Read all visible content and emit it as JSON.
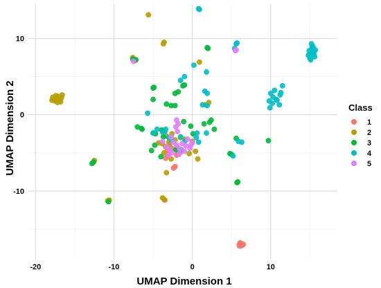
{
  "chart_data": {
    "type": "scatter",
    "title": "",
    "xlabel": "UMAP Dimension 1",
    "ylabel": "UMAP Dimension 2",
    "xlim": [
      -21,
      18.5
    ],
    "ylim": [
      -19,
      14.5
    ],
    "x_ticks": [
      -20,
      -10,
      0,
      10
    ],
    "y_ticks": [
      -10,
      0,
      10
    ],
    "grid": true,
    "legend": {
      "title": "Class",
      "placement": "right"
    },
    "series": [
      {
        "name": "1",
        "color": "#F8766D",
        "points": [
          [
            6.2,
            -16.9
          ],
          [
            6.0,
            -17.0
          ],
          [
            6.4,
            -17.1
          ],
          [
            6.1,
            -16.8
          ],
          [
            6.3,
            -16.9
          ],
          [
            6.0,
            -17.2
          ],
          [
            6.5,
            -17.0
          ],
          [
            6.2,
            -17.2
          ],
          [
            -3.5,
            -11.2
          ],
          [
            -3.0,
            -5.2
          ],
          [
            -3.4,
            -5.7
          ],
          [
            -2.4,
            -7.0
          ],
          [
            -2.0,
            -5.3
          ],
          [
            -2.5,
            -4.5
          ],
          [
            -1.8,
            -5.1
          ],
          [
            -3.2,
            -4.6
          ],
          [
            -2.2,
            -6.8
          ],
          [
            -1.5,
            -4.9
          ],
          [
            -2.9,
            -4.0
          ],
          [
            -3.1,
            -5.4
          ]
        ]
      },
      {
        "name": "2",
        "color": "#B79F00",
        "points": [
          [
            -17.3,
            2.1
          ],
          [
            -17.8,
            2.3
          ],
          [
            -16.9,
            2.0
          ],
          [
            -17.5,
            1.8
          ],
          [
            -17.1,
            2.4
          ],
          [
            -16.7,
            2.2
          ],
          [
            -17.9,
            1.9
          ],
          [
            -17.4,
            2.5
          ],
          [
            -16.8,
            1.7
          ],
          [
            -17.6,
            2.0
          ],
          [
            -17.2,
            1.6
          ],
          [
            -16.6,
            2.6
          ],
          [
            -5.6,
            13.1
          ],
          [
            -3.6,
            9.5
          ],
          [
            -3.7,
            9.3
          ],
          [
            -7.6,
            7.5
          ],
          [
            -7.3,
            7.1
          ],
          [
            -12.5,
            -6.0
          ],
          [
            -10.8,
            -11.3
          ],
          [
            -10.6,
            -11.2
          ],
          [
            -3.8,
            -10.9
          ],
          [
            -3.6,
            -11.1
          ],
          [
            -3.3,
            -7.6
          ],
          [
            -3.8,
            -3.8
          ],
          [
            -3.4,
            -4.2
          ],
          [
            -3.0,
            -3.6
          ],
          [
            -3.6,
            -5.0
          ],
          [
            -4.3,
            -3.7
          ],
          [
            -2.8,
            -4.3
          ],
          [
            -2.2,
            -3.3
          ],
          [
            -1.9,
            -4.3
          ],
          [
            0.0,
            -3.5
          ],
          [
            0.4,
            -4.8
          ],
          [
            0.7,
            -5.8
          ],
          [
            -0.4,
            -5.1
          ],
          [
            -2.7,
            -5.8
          ],
          [
            -3.3,
            -2.8
          ],
          [
            -2.6,
            -2.5
          ],
          [
            -1.0,
            -3.2
          ],
          [
            0.9,
            6.9
          ],
          [
            1.7,
            1.3
          ],
          [
            2.1,
            1.6
          ],
          [
            -1.5,
            -3.0
          ]
        ]
      },
      {
        "name": "3",
        "color": "#00BA38",
        "points": [
          [
            -12.8,
            -6.4
          ],
          [
            -12.6,
            -6.2
          ],
          [
            -10.7,
            -11.4
          ],
          [
            -7.6,
            7.3
          ],
          [
            -7.2,
            7.2
          ],
          [
            -5.0,
            3.5
          ],
          [
            -4.9,
            3.6
          ],
          [
            -5.0,
            2.0
          ],
          [
            -6.5,
            -1.8
          ],
          [
            -6.4,
            -1.9
          ],
          [
            -7.0,
            -1.6
          ],
          [
            -4.7,
            -2.5
          ],
          [
            -5.0,
            -2.4
          ],
          [
            -5.2,
            -4.7
          ],
          [
            -4.8,
            -4.0
          ],
          [
            -3.9,
            -2.0
          ],
          [
            -3.7,
            -2.9
          ],
          [
            -3.3,
            1.4
          ],
          [
            -2.7,
            1.2
          ],
          [
            -2.2,
            1.2
          ],
          [
            -2.2,
            2.8
          ],
          [
            -1.8,
            3.0
          ],
          [
            -1.2,
            3.8
          ],
          [
            -1.0,
            3.9
          ],
          [
            1.9,
            8.8
          ],
          [
            2.0,
            8.7
          ],
          [
            2.2,
            -1.0
          ],
          [
            2.4,
            -0.7
          ],
          [
            2.8,
            -1.9
          ],
          [
            1.5,
            -1.2
          ],
          [
            -1.1,
            -0.9
          ],
          [
            -0.2,
            -1.5
          ],
          [
            0.1,
            -2.5
          ],
          [
            -2.1,
            -4.6
          ],
          [
            -4.0,
            -5.5
          ],
          [
            4.8,
            -5.1
          ],
          [
            5.0,
            -5.2
          ],
          [
            5.6,
            -3.1
          ],
          [
            5.8,
            -8.8
          ],
          [
            5.7,
            -8.9
          ],
          [
            9.7,
            -3.4
          ]
        ]
      },
      {
        "name": "4",
        "color": "#00BFC4",
        "points": [
          [
            0.9,
            13.8
          ],
          [
            0.8,
            13.9
          ],
          [
            5.6,
            9.3
          ],
          [
            5.7,
            9.4
          ],
          [
            5.4,
            8.7
          ],
          [
            15.2,
            8.6
          ],
          [
            15.0,
            7.9
          ],
          [
            15.5,
            8.2
          ],
          [
            15.3,
            9.0
          ],
          [
            14.9,
            8.4
          ],
          [
            15.6,
            7.6
          ],
          [
            15.1,
            7.2
          ],
          [
            15.4,
            8.9
          ],
          [
            14.8,
            7.8
          ],
          [
            15.7,
            8.5
          ],
          [
            15.2,
            9.3
          ],
          [
            15.0,
            7.4
          ],
          [
            15.5,
            7.9
          ],
          [
            15.3,
            8.1
          ],
          [
            9.8,
            1.8
          ],
          [
            10.3,
            2.3
          ],
          [
            10.8,
            1.9
          ],
          [
            11.2,
            2.6
          ],
          [
            10.0,
            2.8
          ],
          [
            11.5,
            3.8
          ],
          [
            9.9,
            0.9
          ],
          [
            11.1,
            1.3
          ],
          [
            10.5,
            3.2
          ],
          [
            10.2,
            1.5
          ],
          [
            11.3,
            2.9
          ],
          [
            10.7,
            2.0
          ],
          [
            0.2,
            6.5
          ],
          [
            1.8,
            5.6
          ],
          [
            1.6,
            3.1
          ],
          [
            1.9,
            2.8
          ],
          [
            -1.5,
            4.5
          ],
          [
            -1.0,
            5.0
          ],
          [
            1.3,
            1.3
          ],
          [
            1.9,
            1.2
          ],
          [
            -5.7,
            0.2
          ],
          [
            -5.0,
            -2.4
          ],
          [
            -4.5,
            -1.9
          ],
          [
            -3.8,
            -2.3
          ],
          [
            -3.5,
            -2.2
          ],
          [
            -3.0,
            -3.0
          ],
          [
            -2.6,
            -3.4
          ],
          [
            -3.4,
            -1.9
          ],
          [
            -1.5,
            -2.9
          ],
          [
            -0.9,
            -3.4
          ],
          [
            -1.4,
            -4.6
          ],
          [
            0.5,
            -3.0
          ],
          [
            0.6,
            -2.4
          ],
          [
            0.8,
            -3.6
          ],
          [
            1.8,
            -2.4
          ],
          [
            5.9,
            -3.5
          ],
          [
            6.3,
            -3.6
          ],
          [
            5.2,
            -5.4
          ]
        ]
      },
      {
        "name": "5",
        "color": "#E07EFF",
        "points": [
          [
            -7.5,
            7.0
          ],
          [
            -2.0,
            -0.7
          ],
          [
            -1.8,
            -1.2
          ],
          [
            -2.1,
            -1.6
          ],
          [
            -1.9,
            -2.2
          ],
          [
            -1.3,
            -3.8
          ],
          [
            -0.8,
            -4.1
          ],
          [
            -1.6,
            -4.5
          ],
          [
            -2.0,
            -4.0
          ],
          [
            -2.6,
            -5.0
          ],
          [
            -3.0,
            -5.3
          ],
          [
            -0.2,
            -4.0
          ],
          [
            0.0,
            -3.7
          ],
          [
            -0.6,
            -3.2
          ],
          [
            -2.4,
            -3.6
          ],
          [
            -3.3,
            -4.2
          ],
          [
            -2.9,
            -4.5
          ],
          [
            -1.0,
            -4.8
          ],
          [
            -1.7,
            -5.2
          ],
          [
            -0.3,
            -4.4
          ],
          [
            -3.8,
            -3.5
          ],
          [
            -2.7,
            -2.9
          ],
          [
            5.6,
            8.5
          ],
          [
            5.5,
            8.4
          ]
        ]
      }
    ]
  }
}
